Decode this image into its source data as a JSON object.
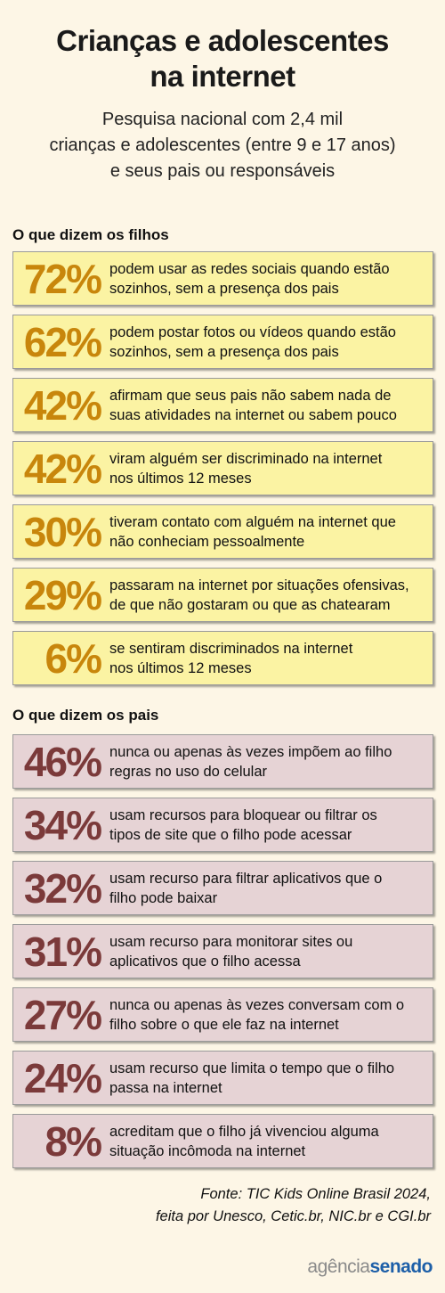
{
  "title_line1": "Crianças e adolescentes",
  "title_line2": "na internet",
  "subtitle_line1": "Pesquisa nacional com 2,4 mil",
  "subtitle_line2": "crianças e adolescentes (entre 9 e 17 anos)",
  "subtitle_line3": "e seus pais ou responsáveis",
  "colors": {
    "children_card": "#fbf3a3",
    "children_pct": "#c8860c",
    "parents_card": "#e6d3d5",
    "parents_pct": "#7b3a3a"
  },
  "chart_data": [
    {
      "type": "table",
      "title": "O que dizem os filhos",
      "rows": [
        {
          "value": 72,
          "label": "72%",
          "line1": "podem usar as redes sociais quando estão",
          "line2": "sozinhos, sem a presença dos pais"
        },
        {
          "value": 62,
          "label": "62%",
          "line1": "podem postar fotos ou vídeos quando estão",
          "line2": "sozinhos, sem a presença dos pais"
        },
        {
          "value": 42,
          "label": "42%",
          "line1": "afirmam que seus pais não sabem nada de",
          "line2": "suas atividades na internet ou sabem pouco"
        },
        {
          "value": 42,
          "label": "42%",
          "line1": "viram alguém ser discriminado na internet",
          "line2": "nos últimos 12 meses"
        },
        {
          "value": 30,
          "label": "30%",
          "line1": "tiveram contato com alguém na internet que",
          "line2": "não conheciam pessoalmente"
        },
        {
          "value": 29,
          "label": "29%",
          "line1": "passaram na internet por situações ofensivas,",
          "line2": "de que não gostaram ou que as chatearam"
        },
        {
          "value": 6,
          "label": "6%",
          "line1": "se sentiram discriminados na internet",
          "line2": "nos últimos 12 meses"
        }
      ]
    },
    {
      "type": "table",
      "title": "O que dizem os pais",
      "rows": [
        {
          "value": 46,
          "label": "46%",
          "line1": "nunca ou apenas às vezes impõem ao filho",
          "line2": "regras no uso do celular"
        },
        {
          "value": 34,
          "label": "34%",
          "line1": "usam recursos para bloquear ou filtrar os",
          "line2": "tipos de site que o filho pode acessar"
        },
        {
          "value": 32,
          "label": "32%",
          "line1": "usam recurso para filtrar aplicativos que o",
          "line2": "filho pode baixar"
        },
        {
          "value": 31,
          "label": "31%",
          "line1": "usam recurso para monitorar sites ou",
          "line2": "aplicativos que o filho acessa"
        },
        {
          "value": 27,
          "label": "27%",
          "line1": "nunca ou apenas às vezes conversam com o",
          "line2": "filho sobre o que ele faz na internet"
        },
        {
          "value": 24,
          "label": "24%",
          "line1": "usam recurso que limita o tempo que o filho",
          "line2": "passa na internet"
        },
        {
          "value": 8,
          "label": "8%",
          "line1": "acreditam que o filho já vivenciou alguma",
          "line2": "situação incômoda na internet"
        }
      ]
    }
  ],
  "source_line1": "Fonte: TIC Kids Online Brasil 2024,",
  "source_line2": "feita por Unesco, Cetic.br, NIC.br e CGI.br",
  "logo_part1": "agência",
  "logo_part2": "senado"
}
